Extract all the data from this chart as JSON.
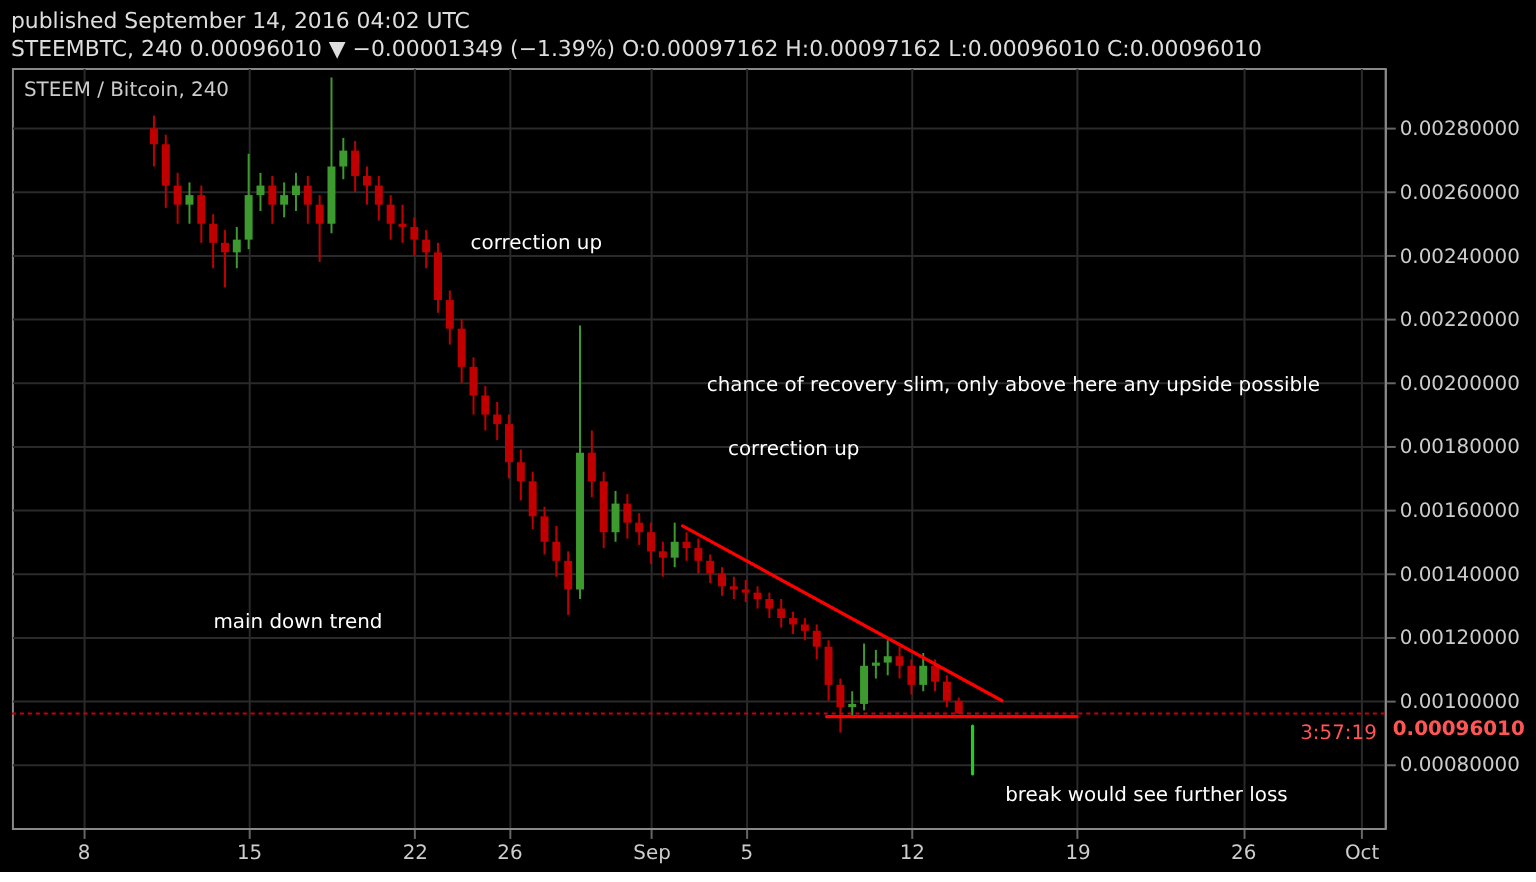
{
  "chart_data": {
    "type": "candlestick",
    "title": "published September 14, 2016 04:02 UTC",
    "subtitle": "STEEMBTC, 240  0.00096010 ▼ −0.00001349 (−1.39%)  O:0.00097162 H:0.00097162 L:0.00096010 C:0.00096010",
    "x": [
      "2016-08-11T00:00",
      "2016-08-11T12:00",
      "2016-08-12T00:00",
      "2016-08-12T12:00",
      "2016-08-13T00:00",
      "2016-08-13T12:00",
      "2016-08-14T00:00",
      "2016-08-14T12:00",
      "2016-08-15T00:00",
      "2016-08-15T12:00",
      "2016-08-16T00:00",
      "2016-08-16T12:00",
      "2016-08-17T00:00",
      "2016-08-17T12:00",
      "2016-08-18T00:00",
      "2016-08-18T12:00",
      "2016-08-19T00:00",
      "2016-08-19T12:00",
      "2016-08-20T00:00",
      "2016-08-20T12:00",
      "2016-08-21T00:00",
      "2016-08-21T12:00",
      "2016-08-22T00:00",
      "2016-08-22T12:00",
      "2016-08-23T00:00",
      "2016-08-23T12:00",
      "2016-08-24T00:00",
      "2016-08-24T12:00",
      "2016-08-25T00:00",
      "2016-08-25T12:00",
      "2016-08-26T00:00",
      "2016-08-26T12:00",
      "2016-08-27T00:00",
      "2016-08-27T12:00",
      "2016-08-28T00:00",
      "2016-08-28T12:00",
      "2016-08-29T00:00",
      "2016-08-29T12:00",
      "2016-08-30T00:00",
      "2016-08-30T12:00",
      "2016-08-31T00:00",
      "2016-08-31T12:00",
      "2016-09-01T00:00",
      "2016-09-01T12:00",
      "2016-09-02T00:00",
      "2016-09-02T12:00",
      "2016-09-03T00:00",
      "2016-09-03T12:00",
      "2016-09-04T00:00",
      "2016-09-04T12:00",
      "2016-09-05T00:00",
      "2016-09-05T12:00",
      "2016-09-06T00:00",
      "2016-09-06T12:00",
      "2016-09-07T00:00",
      "2016-09-07T12:00",
      "2016-09-08T00:00",
      "2016-09-08T12:00",
      "2016-09-09T00:00",
      "2016-09-09T12:00",
      "2016-09-10T00:00",
      "2016-09-10T12:00",
      "2016-09-11T00:00",
      "2016-09-11T12:00",
      "2016-09-12T00:00",
      "2016-09-12T12:00",
      "2016-09-13T00:00",
      "2016-09-13T12:00",
      "2016-09-14T00:00"
    ],
    "ohlc": [
      [
        0.0028,
        0.00284,
        0.00268,
        0.00275
      ],
      [
        0.00275,
        0.00278,
        0.00255,
        0.00262
      ],
      [
        0.00262,
        0.00266,
        0.0025,
        0.00256
      ],
      [
        0.00256,
        0.00263,
        0.0025,
        0.00259
      ],
      [
        0.00259,
        0.00262,
        0.00244,
        0.0025
      ],
      [
        0.0025,
        0.00253,
        0.00236,
        0.00244
      ],
      [
        0.00244,
        0.00248,
        0.0023,
        0.00241
      ],
      [
        0.00241,
        0.00249,
        0.00236,
        0.00245
      ],
      [
        0.00245,
        0.00272,
        0.00242,
        0.00259
      ],
      [
        0.00259,
        0.00266,
        0.00254,
        0.00262
      ],
      [
        0.00262,
        0.00265,
        0.0025,
        0.00256
      ],
      [
        0.00256,
        0.00263,
        0.00252,
        0.00259
      ],
      [
        0.00259,
        0.00266,
        0.00254,
        0.00262
      ],
      [
        0.00262,
        0.00265,
        0.0025,
        0.00256
      ],
      [
        0.00256,
        0.00259,
        0.00238,
        0.0025
      ],
      [
        0.0025,
        0.00296,
        0.00247,
        0.00268
      ],
      [
        0.00268,
        0.00277,
        0.00264,
        0.00273
      ],
      [
        0.00273,
        0.00276,
        0.0026,
        0.00265
      ],
      [
        0.00265,
        0.00268,
        0.00256,
        0.00262
      ],
      [
        0.00262,
        0.00265,
        0.00251,
        0.00256
      ],
      [
        0.00256,
        0.00259,
        0.00245,
        0.0025
      ],
      [
        0.0025,
        0.00256,
        0.00244,
        0.00249
      ],
      [
        0.00249,
        0.00252,
        0.0024,
        0.00245
      ],
      [
        0.00245,
        0.00248,
        0.00236,
        0.00241
      ],
      [
        0.00241,
        0.00244,
        0.00222,
        0.00226
      ],
      [
        0.00226,
        0.00229,
        0.00212,
        0.00217
      ],
      [
        0.00217,
        0.0022,
        0.002,
        0.00205
      ],
      [
        0.00205,
        0.00208,
        0.0019,
        0.00196
      ],
      [
        0.00196,
        0.00199,
        0.00185,
        0.0019
      ],
      [
        0.0019,
        0.00194,
        0.00182,
        0.00187
      ],
      [
        0.00187,
        0.0019,
        0.0017,
        0.00175
      ],
      [
        0.00175,
        0.00179,
        0.00163,
        0.00169
      ],
      [
        0.00169,
        0.00172,
        0.00154,
        0.00158
      ],
      [
        0.00158,
        0.00161,
        0.00146,
        0.0015
      ],
      [
        0.0015,
        0.00155,
        0.00139,
        0.00144
      ],
      [
        0.00144,
        0.00147,
        0.00127,
        0.00135
      ],
      [
        0.00135,
        0.00218,
        0.00132,
        0.00178
      ],
      [
        0.00178,
        0.00185,
        0.00164,
        0.00169
      ],
      [
        0.00169,
        0.00172,
        0.00148,
        0.00153
      ],
      [
        0.00153,
        0.00166,
        0.0015,
        0.00162
      ],
      [
        0.00162,
        0.00165,
        0.00151,
        0.00156
      ],
      [
        0.00156,
        0.00159,
        0.00149,
        0.00153
      ],
      [
        0.00153,
        0.00156,
        0.00143,
        0.00147
      ],
      [
        0.00147,
        0.0015,
        0.00139,
        0.00145
      ],
      [
        0.00145,
        0.00156,
        0.00142,
        0.0015
      ],
      [
        0.0015,
        0.00153,
        0.00144,
        0.00148
      ],
      [
        0.00148,
        0.00151,
        0.0014,
        0.00144
      ],
      [
        0.00144,
        0.00146,
        0.00137,
        0.0014
      ],
      [
        0.0014,
        0.00142,
        0.00133,
        0.00136
      ],
      [
        0.00136,
        0.00139,
        0.00132,
        0.00135
      ],
      [
        0.00135,
        0.00138,
        0.00131,
        0.00134
      ],
      [
        0.00134,
        0.00136,
        0.00129,
        0.00132
      ],
      [
        0.00132,
        0.00134,
        0.00126,
        0.00129
      ],
      [
        0.00129,
        0.00132,
        0.00123,
        0.00126
      ],
      [
        0.00126,
        0.00128,
        0.00121,
        0.00124
      ],
      [
        0.00124,
        0.00126,
        0.00119,
        0.00122
      ],
      [
        0.00122,
        0.00124,
        0.00113,
        0.00117
      ],
      [
        0.00117,
        0.00119,
        0.001,
        0.00105
      ],
      [
        0.00105,
        0.00107,
        0.0009,
        0.00098
      ],
      [
        0.00098,
        0.00103,
        0.00095,
        0.00099
      ],
      [
        0.00099,
        0.00118,
        0.00097,
        0.00111
      ],
      [
        0.00111,
        0.00116,
        0.00107,
        0.00112
      ],
      [
        0.00112,
        0.00119,
        0.00108,
        0.00114
      ],
      [
        0.00114,
        0.00117,
        0.00107,
        0.00111
      ],
      [
        0.00111,
        0.00113,
        0.00102,
        0.00105
      ],
      [
        0.00105,
        0.00115,
        0.00103,
        0.00111
      ],
      [
        0.00111,
        0.00113,
        0.00103,
        0.00106
      ],
      [
        0.00106,
        0.00108,
        0.00098,
        0.001
      ],
      [
        0.001,
        0.00101,
        0.00096,
        0.00096
      ]
    ],
    "xlim": [
      "2016-08-05",
      "2016-10-02"
    ],
    "xticks": [
      {
        "value": "2016-08-08",
        "label": "8"
      },
      {
        "value": "2016-08-15",
        "label": "15"
      },
      {
        "value": "2016-08-22",
        "label": "22"
      },
      {
        "value": "2016-08-26",
        "label": "26"
      },
      {
        "value": "2016-09-01",
        "label": "Sep"
      },
      {
        "value": "2016-09-05",
        "label": "5"
      },
      {
        "value": "2016-09-12",
        "label": "12"
      },
      {
        "value": "2016-09-19",
        "label": "19"
      },
      {
        "value": "2016-09-26",
        "label": "26"
      },
      {
        "value": "2016-10-01",
        "label": "Oct"
      }
    ],
    "ylim": [
      0.0006,
      0.00299
    ],
    "yticks": [
      {
        "value": 0.0008,
        "label": "0.00080000"
      },
      {
        "value": 0.001,
        "label": "0.00100000"
      },
      {
        "value": 0.0012,
        "label": "0.00120000"
      },
      {
        "value": 0.0014,
        "label": "0.00140000"
      },
      {
        "value": 0.0016,
        "label": "0.00160000"
      },
      {
        "value": 0.0018,
        "label": "0.00180000"
      },
      {
        "value": 0.002,
        "label": "0.00200000"
      },
      {
        "value": 0.0022,
        "label": "0.00220000"
      },
      {
        "value": 0.0024,
        "label": "0.00240000"
      },
      {
        "value": 0.0026,
        "label": "0.00260000"
      },
      {
        "value": 0.0028,
        "label": "0.00280000"
      }
    ],
    "grid": true,
    "series": [
      {
        "type": "line",
        "color": "#ff0000",
        "x": [
          "2016-09-02T08:00",
          "2016-09-15T20:00"
        ],
        "values": [
          0.00155,
          0.001
        ]
      },
      {
        "type": "line",
        "color": "#ff0000",
        "x": [
          "2016-09-08T10:00",
          "2016-09-19T00:00"
        ],
        "values": [
          0.00095,
          0.00095
        ]
      },
      {
        "type": "line",
        "color": "#22cc22",
        "x": [
          "2016-09-14T14:00",
          "2016-09-14T14:00"
        ],
        "values": [
          0.00092,
          0.00077
        ]
      }
    ],
    "ref_lines": [
      {
        "axis": "y",
        "value": 0.0009601,
        "label": "0.00096010",
        "color": "#cc0000",
        "line_style": "dotted"
      }
    ],
    "annotations": [
      "STEEM / Bitcoin, 240",
      "3:57:19",
      "correction up",
      "main down trend",
      "correction up",
      "chance of recovery slim, only above here any upside possible",
      "break would see further loss"
    ]
  }
}
